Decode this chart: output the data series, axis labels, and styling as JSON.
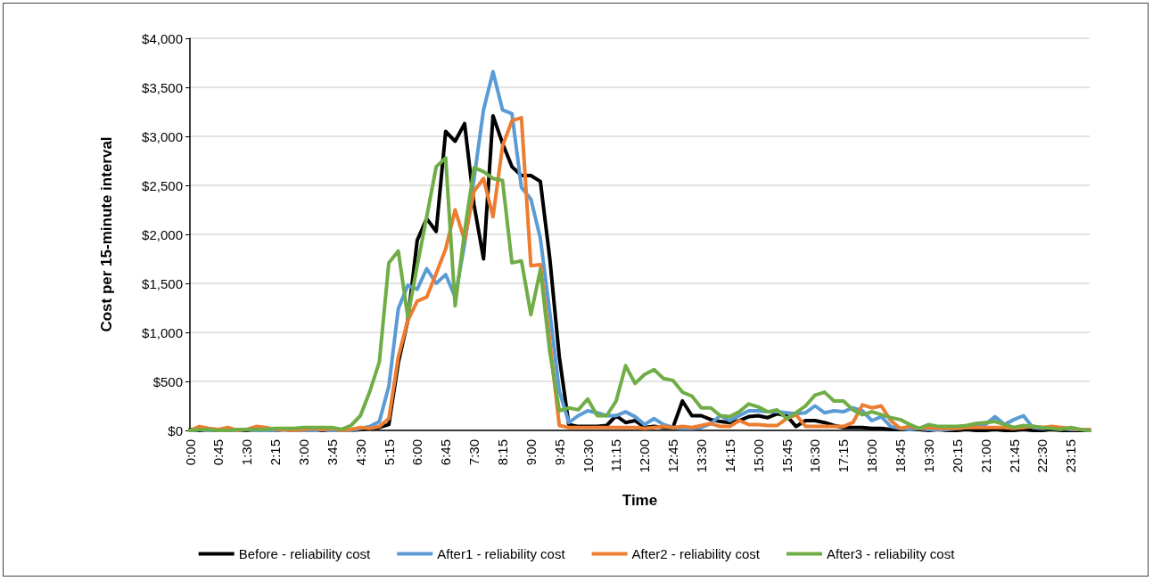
{
  "chart_data": {
    "type": "line",
    "xlabel": "Time",
    "ylabel": "Cost per 15-minute interval",
    "categories": [
      "0:00",
      null,
      null,
      "0:45",
      null,
      null,
      "1:30",
      null,
      null,
      "2:15",
      null,
      null,
      "3:00",
      null,
      null,
      "3:45",
      null,
      null,
      "4:30",
      null,
      null,
      "5:15",
      null,
      null,
      "6:00",
      null,
      null,
      "6:45",
      null,
      null,
      "7:30",
      null,
      null,
      "8:15",
      null,
      null,
      "9:00",
      null,
      null,
      "9:45",
      null,
      null,
      "10:30",
      null,
      null,
      "11:15",
      null,
      null,
      "12:00",
      null,
      null,
      "12:45",
      null,
      null,
      "13:30",
      null,
      null,
      "14:15",
      null,
      null,
      "15:00",
      null,
      null,
      "15:45",
      null,
      null,
      "16:30",
      null,
      null,
      "17:15",
      null,
      null,
      "18:00",
      null,
      null,
      "18:45",
      null,
      null,
      "19:30",
      null,
      null,
      "20:15",
      null,
      null,
      "21:00",
      null,
      null,
      "21:45",
      null,
      null,
      "22:30",
      null,
      null,
      "23:15",
      null,
      null
    ],
    "series": [
      {
        "name": "Before - reliability cost",
        "color": "#000000",
        "values": [
          10,
          0,
          10,
          0,
          10,
          0,
          0,
          10,
          0,
          0,
          10,
          0,
          0,
          10,
          0,
          10,
          0,
          0,
          10,
          20,
          30,
          60,
          690,
          1120,
          1940,
          2160,
          2030,
          3050,
          2950,
          3130,
          2300,
          1750,
          3210,
          2930,
          2690,
          2600,
          2600,
          2540,
          1750,
          750,
          60,
          40,
          40,
          40,
          50,
          150,
          80,
          100,
          30,
          40,
          30,
          30,
          300,
          150,
          150,
          110,
          90,
          80,
          100,
          140,
          150,
          130,
          170,
          150,
          40,
          100,
          100,
          80,
          50,
          30,
          30,
          30,
          20,
          20,
          10,
          10,
          10,
          10,
          0,
          10,
          0,
          0,
          10,
          0,
          0,
          10,
          0,
          0,
          10,
          0,
          0,
          10,
          0,
          0,
          0,
          0
        ]
      },
      {
        "name": "After1 - reliability cost",
        "color": "#5b9bd5",
        "values": [
          0,
          10,
          0,
          10,
          0,
          0,
          10,
          0,
          0,
          0,
          10,
          0,
          0,
          0,
          10,
          0,
          0,
          0,
          20,
          40,
          90,
          450,
          1240,
          1480,
          1440,
          1650,
          1500,
          1590,
          1360,
          1900,
          2570,
          3270,
          3660,
          3270,
          3230,
          2480,
          2360,
          1960,
          1200,
          400,
          80,
          150,
          200,
          180,
          150,
          150,
          190,
          140,
          60,
          120,
          60,
          30,
          20,
          20,
          30,
          70,
          150,
          100,
          150,
          200,
          200,
          190,
          190,
          180,
          170,
          180,
          250,
          180,
          200,
          190,
          230,
          200,
          100,
          140,
          40,
          20,
          10,
          20,
          10,
          10,
          10,
          20,
          30,
          40,
          60,
          140,
          60,
          110,
          150,
          30,
          20,
          30,
          20,
          10,
          10,
          0
        ]
      },
      {
        "name": "After2 - reliability cost",
        "color": "#ed7d31",
        "values": [
          0,
          40,
          20,
          10,
          30,
          0,
          10,
          40,
          30,
          10,
          10,
          0,
          10,
          20,
          10,
          20,
          0,
          10,
          30,
          20,
          40,
          120,
          750,
          1120,
          1320,
          1360,
          1600,
          1850,
          2250,
          1940,
          2440,
          2570,
          2180,
          2900,
          3160,
          3190,
          1680,
          1690,
          900,
          50,
          30,
          30,
          30,
          30,
          30,
          30,
          30,
          30,
          20,
          30,
          40,
          30,
          40,
          30,
          50,
          70,
          40,
          40,
          100,
          60,
          60,
          50,
          50,
          120,
          160,
          40,
          40,
          40,
          40,
          40,
          80,
          260,
          230,
          250,
          100,
          20,
          40,
          20,
          30,
          20,
          20,
          20,
          30,
          30,
          30,
          30,
          30,
          20,
          30,
          40,
          30,
          40,
          30,
          20,
          10,
          10
        ]
      },
      {
        "name": "After3 - reliability cost",
        "color": "#70ad47",
        "values": [
          0,
          10,
          10,
          0,
          0,
          10,
          10,
          10,
          10,
          20,
          20,
          20,
          30,
          30,
          30,
          30,
          10,
          50,
          150,
          400,
          700,
          1710,
          1830,
          1160,
          1680,
          2180,
          2690,
          2780,
          1270,
          2030,
          2680,
          2640,
          2570,
          2550,
          1710,
          1730,
          1180,
          1640,
          800,
          200,
          230,
          210,
          320,
          150,
          150,
          300,
          660,
          480,
          570,
          620,
          530,
          510,
          390,
          350,
          230,
          230,
          150,
          140,
          190,
          270,
          240,
          190,
          210,
          120,
          180,
          250,
          360,
          390,
          300,
          300,
          210,
          160,
          190,
          160,
          130,
          110,
          60,
          20,
          60,
          40,
          40,
          40,
          50,
          70,
          80,
          90,
          60,
          30,
          50,
          40,
          30,
          20,
          10,
          30,
          10,
          0
        ]
      }
    ],
    "ylim": [
      0,
      4000
    ],
    "yticks": [
      {
        "value": 0,
        "label": "$0"
      },
      {
        "value": 500,
        "label": "$500"
      },
      {
        "value": 1000,
        "label": "$1,000"
      },
      {
        "value": 1500,
        "label": "$1,500"
      },
      {
        "value": 2000,
        "label": "$2,000"
      },
      {
        "value": 2500,
        "label": "$2,500"
      },
      {
        "value": 3000,
        "label": "$3,000"
      },
      {
        "value": 3500,
        "label": "$3,500"
      },
      {
        "value": 4000,
        "label": "$4,000"
      }
    ],
    "grid": "y",
    "legend": "bottom",
    "marker": "none",
    "line_style": "solid"
  }
}
